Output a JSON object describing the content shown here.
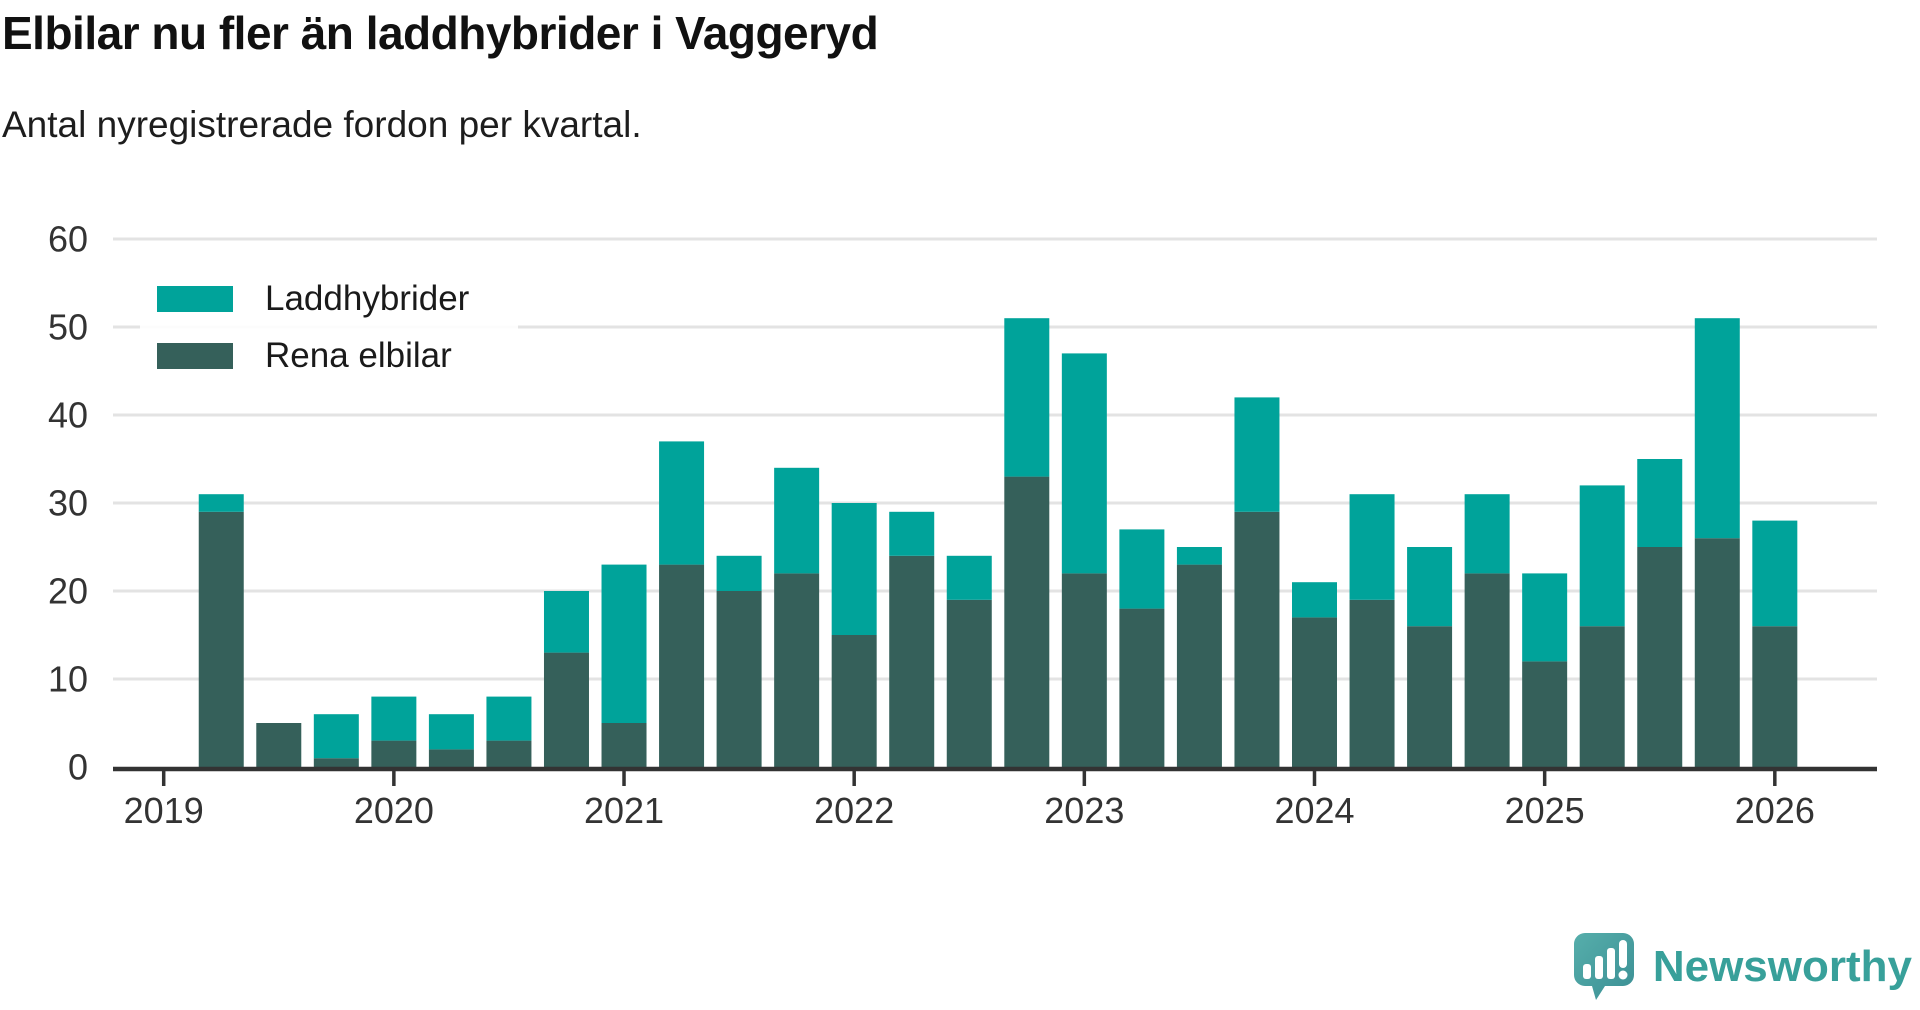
{
  "title": "Elbilar nu fler än laddhybrider i Vaggeryd",
  "subtitle": "Antal nyregistrerade fordon per kvartal.",
  "colors": {
    "teal": "#00a39a",
    "dark": "#35605a",
    "axis": "#333333",
    "grid": "#e3e3e3",
    "tick_text": "#333333",
    "logo_teal": "#38a09a",
    "logo_mark_light": "#56aeab",
    "logo_mark_dark": "#3b8f94"
  },
  "chart_data": {
    "type": "bar",
    "stacked": true,
    "title": "Elbilar nu fler än laddhybrider i Vaggeryd",
    "subtitle": "Antal nyregistrerade fordon per kvartal.",
    "xlabel": "",
    "ylabel": "",
    "ylim": [
      0,
      60
    ],
    "yticks": [
      0,
      10,
      20,
      30,
      40,
      50,
      60
    ],
    "xticks": [
      "2019",
      "2020",
      "2021",
      "2022",
      "2023",
      "2024",
      "2025",
      "2026"
    ],
    "grid": true,
    "legend_position": "top-left",
    "legend": [
      "Laddhybrider",
      "Rena elbilar"
    ],
    "stack_bottom": "Rena elbilar",
    "categories": [
      "2019 Q2",
      "2019 Q3",
      "2019 Q4",
      "2020 Q1",
      "2020 Q2",
      "2020 Q3",
      "2020 Q4",
      "2021 Q1",
      "2021 Q2",
      "2021 Q3",
      "2021 Q4",
      "2022 Q1",
      "2022 Q2",
      "2022 Q3",
      "2022 Q4",
      "2023 Q1",
      "2023 Q2",
      "2023 Q3",
      "2023 Q4",
      "2024 Q1",
      "2024 Q2",
      "2024 Q3",
      "2024 Q4",
      "2025 Q1",
      "2025 Q2",
      "2025 Q3",
      "2025 Q4",
      "2026 Q1"
    ],
    "series": [
      {
        "name": "Laddhybrider",
        "color": "#00a39a",
        "values": [
          2,
          0,
          5,
          5,
          4,
          5,
          7,
          18,
          14,
          4,
          12,
          15,
          5,
          5,
          18,
          25,
          9,
          2,
          13,
          4,
          12,
          9,
          9,
          10,
          16,
          10,
          25,
          12
        ]
      },
      {
        "name": "Rena elbilar",
        "color": "#35605a",
        "values": [
          29,
          5,
          1,
          3,
          2,
          3,
          13,
          5,
          23,
          20,
          22,
          15,
          24,
          19,
          33,
          22,
          18,
          23,
          29,
          17,
          19,
          16,
          22,
          12,
          16,
          25,
          26,
          16
        ]
      }
    ],
    "totals": [
      31,
      5,
      6,
      8,
      6,
      8,
      20,
      23,
      37,
      24,
      34,
      30,
      29,
      24,
      51,
      47,
      27,
      25,
      42,
      21,
      31,
      25,
      31,
      22,
      32,
      35,
      51,
      28
    ]
  },
  "logo": {
    "text": "Newsworthy"
  }
}
